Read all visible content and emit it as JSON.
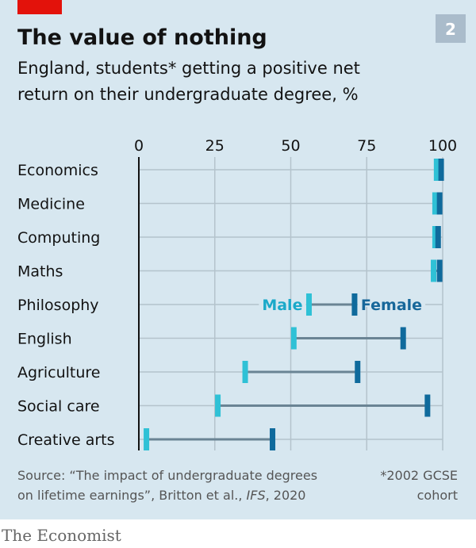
{
  "header": {
    "title": "The value of nothing",
    "subtitle_line1": "England, students* getting a positive net",
    "subtitle_line2": "return on their undergraduate degree, %",
    "chart_number": "2",
    "accent_color": "#e3120b"
  },
  "chart_data": {
    "type": "dumbbell",
    "title": "The value of nothing",
    "xlim": [
      0,
      100
    ],
    "xticks": [
      "0",
      "25",
      "50",
      "75",
      "100"
    ],
    "xtick_values": [
      0,
      25,
      50,
      75,
      100
    ],
    "grid": true,
    "categories": [
      "Economics",
      "Medicine",
      "Computing",
      "Maths",
      "Philosophy",
      "English",
      "Agriculture",
      "Social care",
      "Creative arts"
    ],
    "series": [
      {
        "name": "Male",
        "color": "#2fc1d6",
        "values": [
          98,
          97.5,
          97.5,
          97,
          56,
          51,
          35,
          26,
          2.5
        ]
      },
      {
        "name": "Female",
        "color": "#0f6a9c",
        "values": [
          99.5,
          99,
          98.5,
          99,
          71,
          87,
          72,
          95,
          44
        ]
      }
    ],
    "legend": {
      "male_label": "Male",
      "female_label": "Female",
      "placement": "inline on Philosophy row",
      "male_text_color": "#1ba9c9",
      "female_text_color": "#17679a"
    },
    "connector_color": "#6a8494"
  },
  "footer": {
    "source_line1": "Source: “The impact of undergraduate degrees",
    "source_line2_a": "on lifetime earnings”, Britton et al., ",
    "source_line2_b": "IFS",
    "source_line2_c": ", 2020",
    "note_line1": "*2002 GCSE",
    "note_line2": "cohort",
    "brand": "The Economist"
  }
}
